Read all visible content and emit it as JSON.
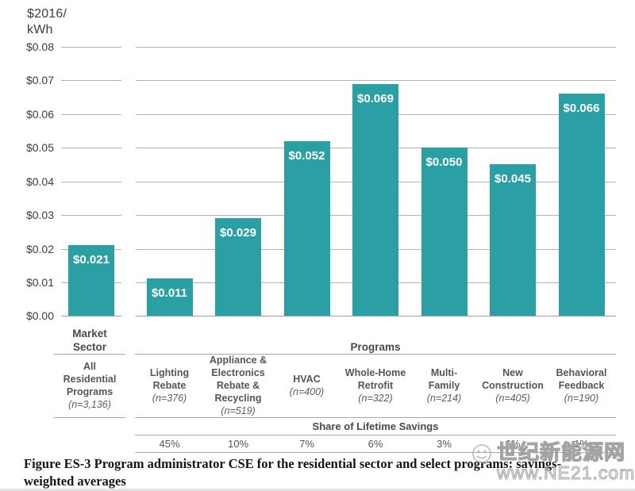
{
  "axis": {
    "unit_line1": "$2016/",
    "unit_line2": "kWh",
    "ticks": [
      "$0.08",
      "$0.07",
      "$0.06",
      "$0.05",
      "$0.04",
      "$0.03",
      "$0.02",
      "$0.01",
      "$0.00"
    ]
  },
  "market": {
    "header": "Market Sector",
    "name": "All Residential Programs",
    "n": "(n=3,136)",
    "value": 0.021,
    "value_label": "$0.021"
  },
  "programs": {
    "header": "Programs",
    "share_header": "Share of Lifetime Savings",
    "items": [
      {
        "name": "Lighting Rebate",
        "n": "(n=376)",
        "value": 0.011,
        "value_label": "$0.011",
        "share": "45%"
      },
      {
        "name": "Appliance & Electronics Rebate & Recycling",
        "n": "(n=519)",
        "value": 0.029,
        "value_label": "$0.029",
        "share": "10%"
      },
      {
        "name": "HVAC",
        "n": "(n=400)",
        "value": 0.052,
        "value_label": "$0.052",
        "share": "7%"
      },
      {
        "name": "Whole-Home Retrofit",
        "n": "(n=322)",
        "value": 0.069,
        "value_label": "$0.069",
        "share": "6%"
      },
      {
        "name": "Multi-Family",
        "n": "(n=214)",
        "value": 0.05,
        "value_label": "$0.050",
        "share": "3%"
      },
      {
        "name": "New Construction",
        "n": "(n=405)",
        "value": 0.045,
        "value_label": "$0.045",
        "share": "6%"
      },
      {
        "name": "Behavioral Feedback",
        "n": "(n=190)",
        "value": 0.066,
        "value_label": "$0.066",
        "share": "1%"
      }
    ]
  },
  "caption": {
    "line1": "Figure ES-3 Program administrator CSE for the residential sector and select programs: savings-",
    "line2": "weighted averages"
  },
  "watermark": {
    "cn": "世纪新能源网",
    "url": "www.NE21.com"
  },
  "colors": {
    "bar": "#2AA0A5"
  },
  "chart_data": {
    "type": "bar",
    "title": "Figure ES-3 Program administrator CSE for the residential sector and select programs: savings-weighted averages",
    "xlabel": "",
    "ylabel": "$2016/kWh",
    "ylim": [
      0,
      0.08
    ],
    "ytick_step": 0.01,
    "grid": true,
    "legend": false,
    "groups": [
      {
        "group": "Market Sector",
        "categories": [
          "All Residential Programs (n=3,136)"
        ],
        "values": [
          0.021
        ]
      },
      {
        "group": "Programs",
        "categories": [
          "Lighting Rebate (n=376)",
          "Appliance & Electronics Rebate & Recycling (n=519)",
          "HVAC (n=400)",
          "Whole-Home Retrofit (n=322)",
          "Multi-Family (n=214)",
          "New Construction (n=405)",
          "Behavioral Feedback (n=190)"
        ],
        "values": [
          0.011,
          0.029,
          0.052,
          0.069,
          0.05,
          0.045,
          0.066
        ],
        "share_of_lifetime_savings": [
          "45%",
          "10%",
          "7%",
          "6%",
          "3%",
          "6%",
          "1%"
        ]
      }
    ]
  }
}
